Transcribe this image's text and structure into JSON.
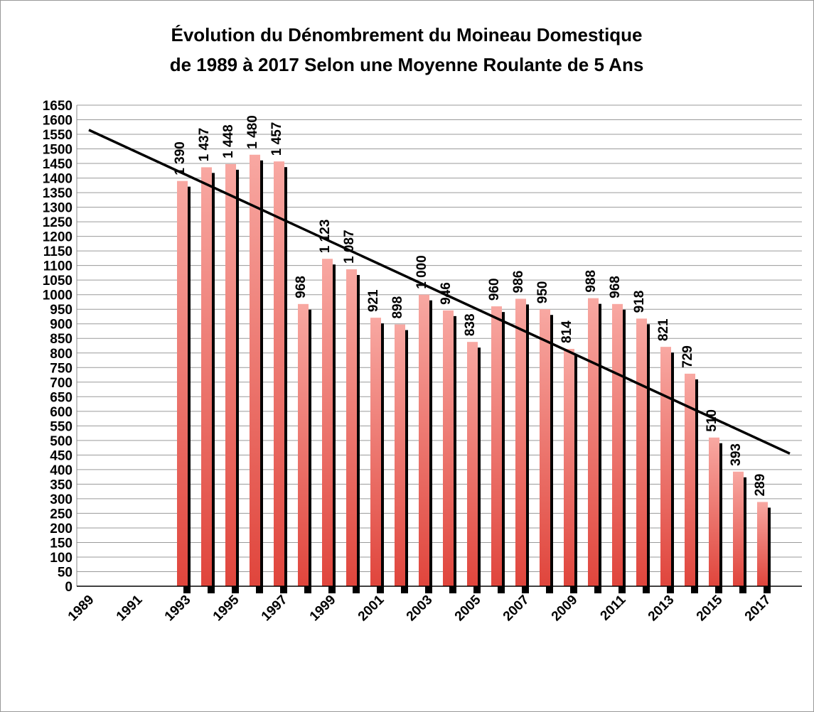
{
  "chart_data": {
    "type": "bar",
    "title": [
      "Évolution du Dénombrement du Moineau Domestique",
      "de 1989 à 2017 Selon une Moyenne Roulante de 5 Ans"
    ],
    "categories": [
      "1989",
      null,
      "1991",
      null,
      "1993",
      null,
      "1995",
      null,
      "1997",
      null,
      "1999",
      null,
      "2001",
      null,
      "2003",
      null,
      "2005",
      null,
      "2007",
      null,
      "2009",
      null,
      "2011",
      null,
      "2013",
      null,
      "2015",
      null,
      "2017",
      null
    ],
    "values": [
      null,
      null,
      null,
      null,
      1390,
      1437,
      1448,
      1480,
      1457,
      968,
      1123,
      1087,
      921,
      898,
      1000,
      946,
      838,
      960,
      986,
      950,
      814,
      988,
      968,
      918,
      821,
      729,
      510,
      393,
      289,
      null
    ],
    "value_labels": [
      null,
      null,
      null,
      null,
      "1 390",
      "1 437",
      "1 448",
      "1 480",
      "1 457",
      "968",
      "1 123",
      "1 087",
      "921",
      "898",
      "1 000",
      "946",
      "838",
      "960",
      "986",
      "950",
      "814",
      "988",
      "968",
      "918",
      "821",
      "729",
      "510",
      "393",
      "289",
      null
    ],
    "color": "#f8a8a2",
    "trendline": [
      1565,
      455
    ],
    "ylim": [
      0,
      1650
    ],
    "yticks": [
      0,
      50,
      100,
      150,
      200,
      250,
      300,
      350,
      400,
      450,
      500,
      550,
      600,
      650,
      700,
      750,
      800,
      850,
      900,
      950,
      1000,
      1050,
      1100,
      1150,
      1200,
      1250,
      1300,
      1350,
      1400,
      1450,
      1500,
      1550,
      1600,
      1650
    ],
    "grid": true
  }
}
